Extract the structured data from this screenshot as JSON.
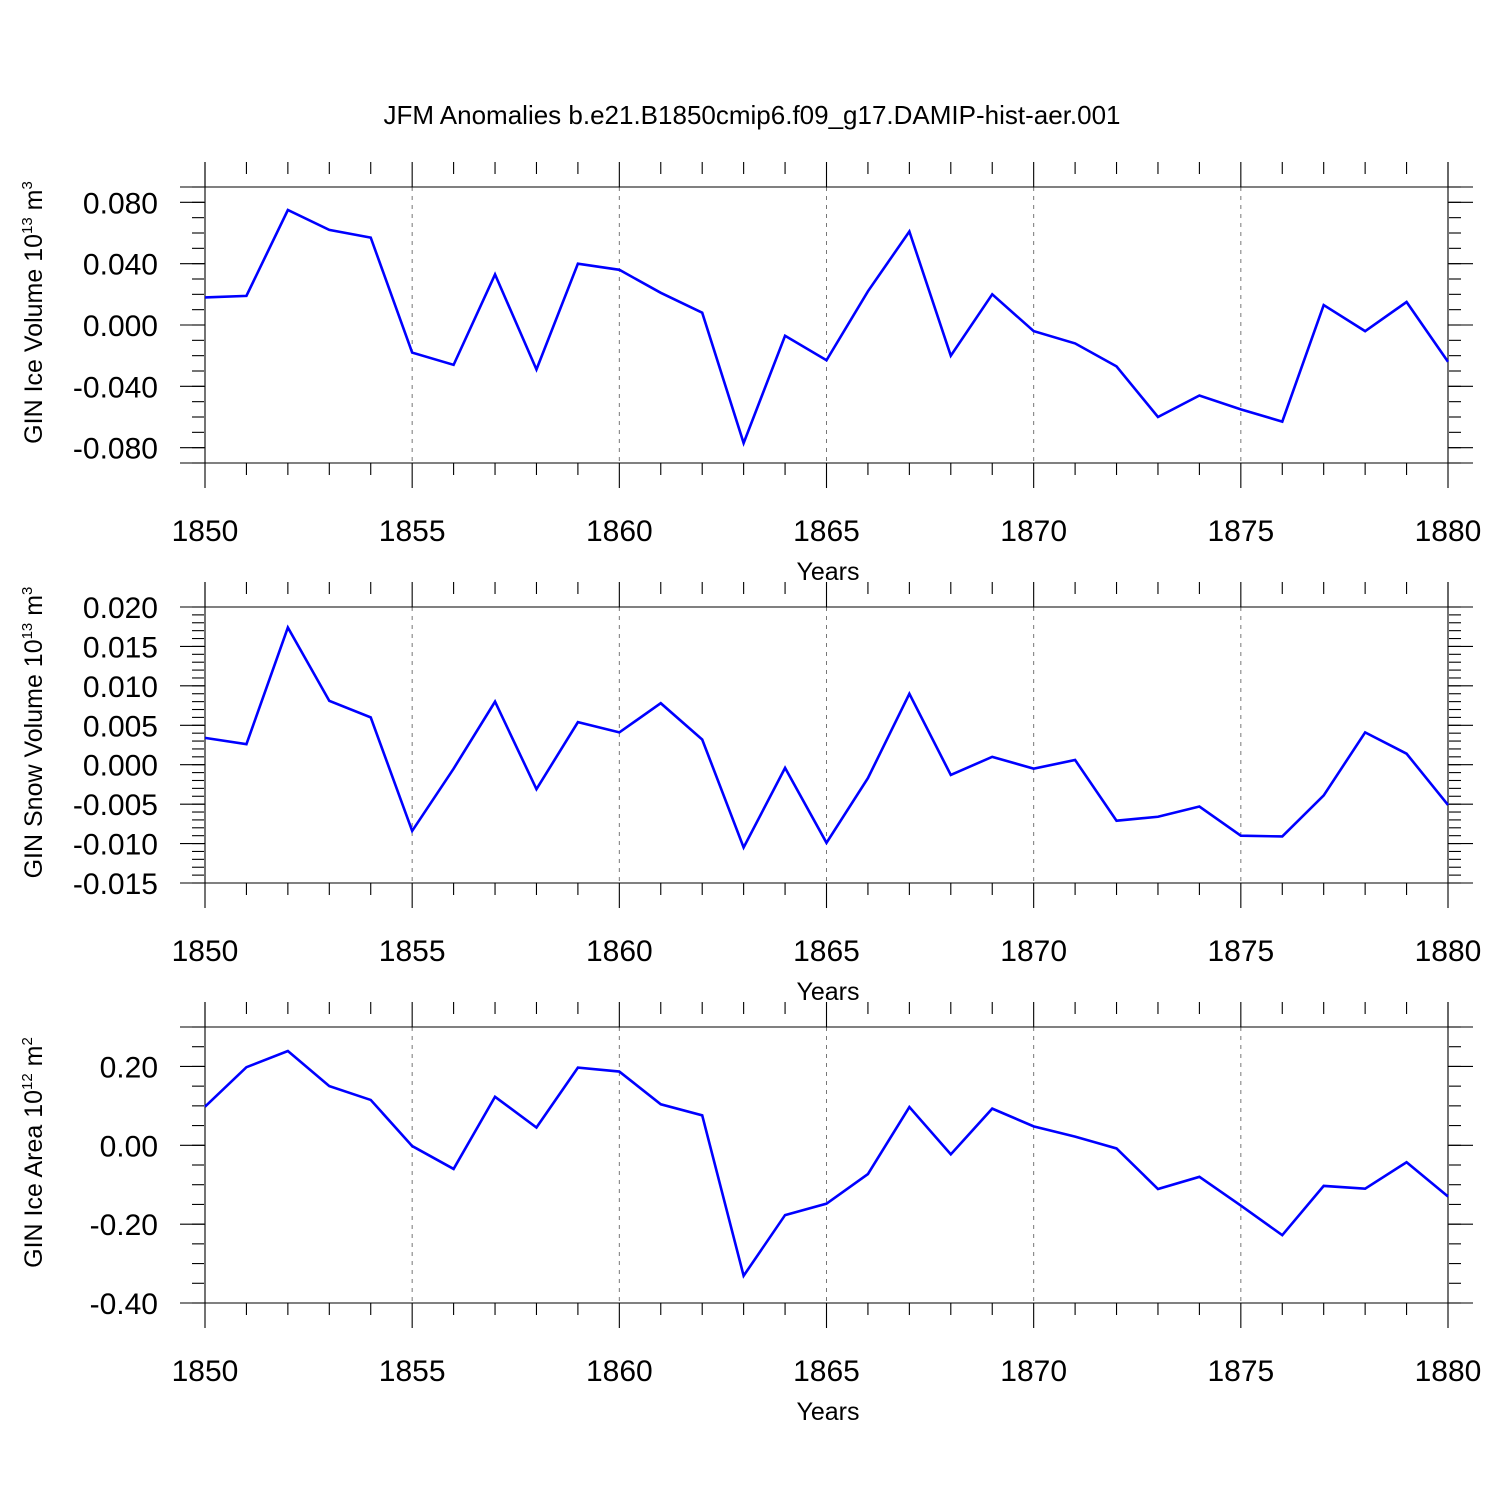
{
  "title": "JFM Anomalies b.e21.B1850cmip6.f09_g17.DAMIP-hist-aer.001",
  "colors": {
    "line": "#0000ff",
    "axes": "#000000",
    "grid": "#777777"
  },
  "chart_data": [
    {
      "type": "line",
      "xlabel": "Years",
      "ylabel": {
        "main": "GIN Ice Volume 10",
        "exp1": "13",
        "unit": " m",
        "exp2": "3"
      },
      "xlim": [
        1850,
        1880
      ],
      "ylim": [
        -0.09,
        0.09
      ],
      "ytick_values": [
        -0.08,
        -0.04,
        0.0,
        0.04,
        0.08
      ],
      "ytick_labels": [
        "-0.080",
        "-0.040",
        "0.000",
        "0.040",
        "0.080"
      ],
      "ytick_minor_step": 0.01,
      "xtick_values": [
        1850,
        1855,
        1860,
        1865,
        1870,
        1875,
        1880
      ],
      "xtick_labels": [
        "1850",
        "1855",
        "1860",
        "1865",
        "1870",
        "1875",
        "1880"
      ],
      "grid": "vertical dashed at major x ticks",
      "series": [
        {
          "name": "GIN Ice Volume",
          "x": [
            1850,
            1851,
            1852,
            1853,
            1854,
            1855,
            1856,
            1857,
            1858,
            1859,
            1860,
            1861,
            1862,
            1863,
            1864,
            1865,
            1866,
            1867,
            1868,
            1869,
            1870,
            1871,
            1872,
            1873,
            1874,
            1875,
            1876,
            1877,
            1878,
            1879,
            1880
          ],
          "y": [
            0.018,
            0.019,
            0.075,
            0.062,
            0.057,
            -0.018,
            -0.026,
            0.033,
            -0.029,
            0.04,
            0.036,
            0.021,
            0.008,
            -0.077,
            -0.007,
            -0.023,
            0.022,
            0.061,
            -0.02,
            0.02,
            -0.004,
            -0.012,
            -0.027,
            -0.06,
            -0.046,
            -0.055,
            -0.063,
            0.013,
            -0.004,
            0.015,
            -0.024
          ]
        }
      ]
    },
    {
      "type": "line",
      "xlabel": "Years",
      "ylabel": {
        "main": "GIN Snow Volume 10",
        "exp1": "13",
        "unit": " m",
        "exp2": "3"
      },
      "xlim": [
        1850,
        1880
      ],
      "ylim": [
        -0.015,
        0.02
      ],
      "ytick_values": [
        -0.015,
        -0.01,
        -0.005,
        0.0,
        0.005,
        0.01,
        0.015,
        0.02
      ],
      "ytick_labels": [
        "-0.015",
        "-0.010",
        "-0.005",
        "0.000",
        "0.005",
        "0.010",
        "0.015",
        "0.020"
      ],
      "ytick_minor_step": 0.001,
      "xtick_values": [
        1850,
        1855,
        1860,
        1865,
        1870,
        1875,
        1880
      ],
      "xtick_labels": [
        "1850",
        "1855",
        "1860",
        "1865",
        "1870",
        "1875",
        "1880"
      ],
      "grid": "vertical dashed at major x ticks",
      "series": [
        {
          "name": "GIN Snow Volume",
          "x": [
            1850,
            1851,
            1852,
            1853,
            1854,
            1855,
            1856,
            1857,
            1858,
            1859,
            1860,
            1861,
            1862,
            1863,
            1864,
            1865,
            1866,
            1867,
            1868,
            1869,
            1870,
            1871,
            1872,
            1873,
            1874,
            1875,
            1876,
            1877,
            1878,
            1879,
            1880
          ],
          "y": [
            0.0034,
            0.0026,
            0.0174,
            0.0081,
            0.006,
            -0.0084,
            -0.0005,
            0.008,
            -0.0031,
            0.0054,
            0.0041,
            0.0078,
            0.0032,
            -0.0105,
            -0.0004,
            -0.0099,
            -0.0017,
            0.009,
            -0.0013,
            0.001,
            -0.0005,
            0.0006,
            -0.0071,
            -0.0066,
            -0.0053,
            -0.009,
            -0.0091,
            -0.0039,
            0.0041,
            0.0014,
            -0.0051
          ]
        }
      ]
    },
    {
      "type": "line",
      "xlabel": "Years",
      "ylabel": {
        "main": "GIN Ice Area 10",
        "exp1": "12",
        "unit": " m",
        "exp2": "2"
      },
      "xlim": [
        1850,
        1880
      ],
      "ylim": [
        -0.4,
        0.3
      ],
      "ytick_values": [
        -0.4,
        -0.2,
        0.0,
        0.2
      ],
      "ytick_labels": [
        "-0.40",
        "-0.20",
        "0.00",
        "0.20"
      ],
      "ytick_minor_step": 0.05,
      "xtick_values": [
        1850,
        1855,
        1860,
        1865,
        1870,
        1875,
        1880
      ],
      "xtick_labels": [
        "1850",
        "1855",
        "1860",
        "1865",
        "1870",
        "1875",
        "1880"
      ],
      "grid": "vertical dashed at major x ticks",
      "series": [
        {
          "name": "GIN Ice Area",
          "x": [
            1850,
            1851,
            1852,
            1853,
            1854,
            1855,
            1856,
            1857,
            1858,
            1859,
            1860,
            1861,
            1862,
            1863,
            1864,
            1865,
            1866,
            1867,
            1868,
            1869,
            1870,
            1871,
            1872,
            1873,
            1874,
            1875,
            1876,
            1877,
            1878,
            1879,
            1880
          ],
          "y": [
            0.098,
            0.198,
            0.239,
            0.15,
            0.115,
            -0.002,
            -0.06,
            0.123,
            0.045,
            0.197,
            0.187,
            0.104,
            0.076,
            -0.331,
            -0.177,
            -0.148,
            -0.073,
            0.097,
            -0.023,
            0.093,
            0.048,
            0.022,
            -0.008,
            -0.111,
            -0.08,
            -0.153,
            -0.228,
            -0.103,
            -0.11,
            -0.043,
            -0.13
          ]
        }
      ]
    }
  ]
}
